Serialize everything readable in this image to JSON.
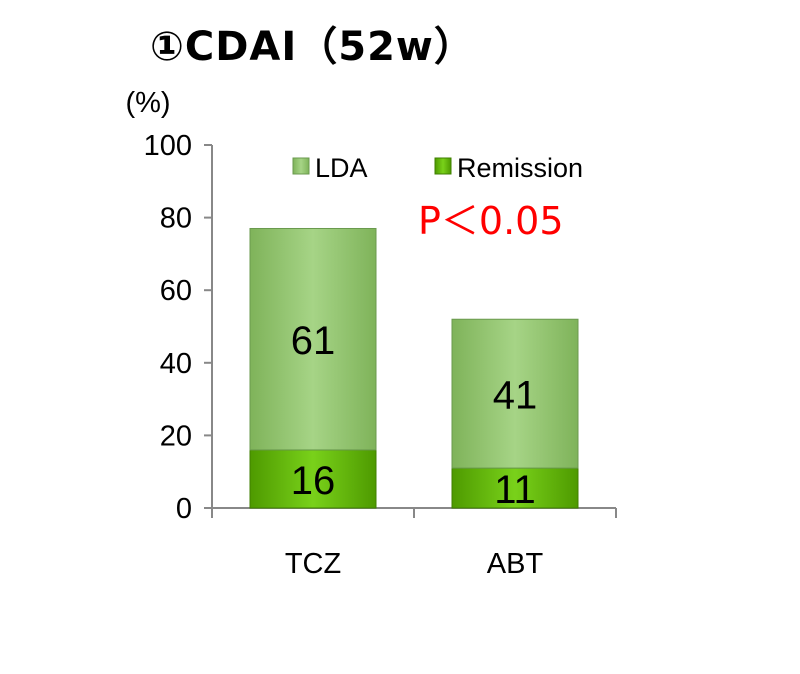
{
  "chart_data": {
    "type": "bar",
    "stacked": true,
    "title": "①CDAI（52w）",
    "ylabel": "(%)",
    "xlabel": "",
    "categories": [
      "TCZ",
      "ABT"
    ],
    "ylim": [
      0,
      100
    ],
    "yticks": [
      "0",
      "20",
      "40",
      "60",
      "80",
      "100"
    ],
    "series": [
      {
        "name": "Remission",
        "values": [
          16,
          11
        ],
        "color": "#5fb800"
      },
      {
        "name": "LDA",
        "values": [
          61,
          41
        ],
        "color": "#8dc46a"
      }
    ],
    "data_labels": [
      [
        "16",
        "11"
      ],
      [
        "61",
        "41"
      ]
    ],
    "legend": {
      "position": "top",
      "order": [
        "LDA",
        "Remission"
      ]
    },
    "annotations": [
      "P＜0.05"
    ],
    "annotation_color": "#ff0000",
    "grid": false
  }
}
